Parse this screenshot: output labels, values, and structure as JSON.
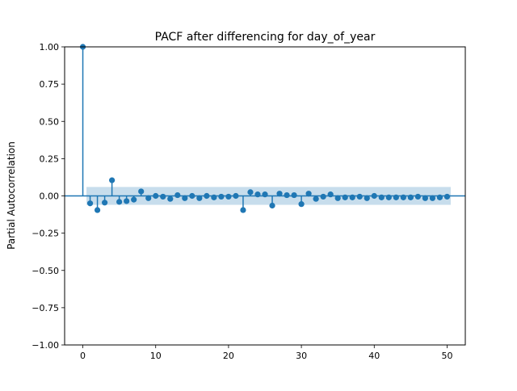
{
  "chart_data": {
    "type": "stem",
    "title": "PACF after differencing for day_of_year",
    "xlabel": "",
    "ylabel": "Partial Autocorrelation",
    "xlim": [
      -2.5,
      52.5
    ],
    "ylim": [
      -1.0,
      1.0
    ],
    "xticks": [
      0,
      10,
      20,
      30,
      40,
      50
    ],
    "yticks": [
      -1.0,
      -0.75,
      -0.5,
      -0.25,
      0.0,
      0.25,
      0.5,
      0.75,
      1.0
    ],
    "xtick_labels": [
      "0",
      "10",
      "20",
      "30",
      "40",
      "50"
    ],
    "ytick_labels": [
      "−1.00",
      "−0.75",
      "−0.50",
      "−0.25",
      "0.00",
      "0.25",
      "0.50",
      "0.75",
      "1.00"
    ],
    "confidence_band": {
      "lower": -0.06,
      "upper": 0.06,
      "x_start": 0.5,
      "x_end": 50.5
    },
    "lags": [
      0,
      1,
      2,
      3,
      4,
      5,
      6,
      7,
      8,
      9,
      10,
      11,
      12,
      13,
      14,
      15,
      16,
      17,
      18,
      19,
      20,
      21,
      22,
      23,
      24,
      25,
      26,
      27,
      28,
      29,
      30,
      31,
      32,
      33,
      34,
      35,
      36,
      37,
      38,
      39,
      40,
      41,
      42,
      43,
      44,
      45,
      46,
      47,
      48,
      49,
      50
    ],
    "values": [
      1.0,
      -0.05,
      -0.095,
      -0.045,
      0.105,
      -0.04,
      -0.035,
      -0.025,
      0.03,
      -0.015,
      0.0,
      -0.005,
      -0.02,
      0.005,
      -0.015,
      0.0,
      -0.015,
      0.0,
      -0.01,
      -0.005,
      -0.005,
      0.0,
      -0.095,
      0.025,
      0.01,
      0.01,
      -0.065,
      0.015,
      0.005,
      0.005,
      -0.055,
      0.015,
      -0.02,
      -0.005,
      0.01,
      -0.015,
      -0.01,
      -0.01,
      -0.005,
      -0.015,
      0.0,
      -0.01,
      -0.01,
      -0.01,
      -0.01,
      -0.01,
      -0.005,
      -0.015,
      -0.015,
      -0.01,
      -0.005
    ],
    "colors": {
      "stem": "#1f77b4",
      "band": "#1f77b4"
    }
  }
}
